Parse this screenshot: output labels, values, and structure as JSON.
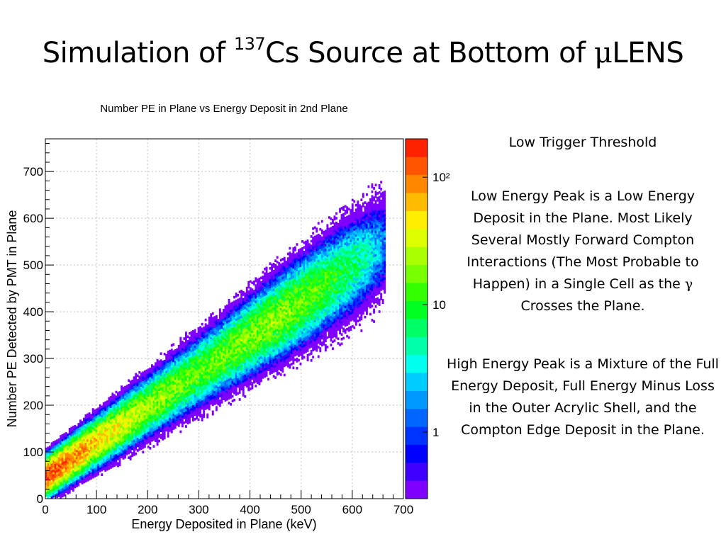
{
  "slide": {
    "title_prefix": "Simulation of ",
    "title_isotope_mass": "137",
    "title_isotope_symbol": "Cs",
    "title_middle": " Source at Bottom of ",
    "title_mu": "μ",
    "title_suffix": "LENS"
  },
  "notes": {
    "trigger": "Low Trigger Threshold",
    "low_peak_text": "Low Energy Peak is a Low Energy Deposit in the Plane. Most Likely Several Mostly Forward Compton Interactions (The Most Probable to Happen) in a Single Cell as the",
    "gamma_symbol": "γ",
    "low_peak_end": "Crosses the Plane.",
    "high_peak_text": "High Energy Peak is a Mixture of the Full Energy Deposit, Full Energy Minus Loss in the Outer Acrylic Shell, and the Compton Edge Deposit in the Plane."
  },
  "chart_data": {
    "type": "heatmap",
    "title": "Number PE in Plane vs Energy Deposit in 2nd Plane",
    "xlabel": "Energy Deposited in Plane (keV)",
    "ylabel": "Number PE Detected by PMT in Plane",
    "xlim": [
      0,
      700
    ],
    "ylim": [
      0,
      770
    ],
    "xticks": [
      0,
      100,
      200,
      300,
      400,
      500,
      600,
      700
    ],
    "yticks": [
      0,
      100,
      200,
      300,
      400,
      500,
      600,
      700
    ],
    "grid": true,
    "z_scale": "log",
    "colorbar_labels": [
      "1",
      "10",
      "10²"
    ],
    "colorbar_label_values": [
      1,
      10,
      100
    ],
    "colorbar_max": 200,
    "band": {
      "slope_pe_per_kev": 0.75,
      "intercept_pe": 45,
      "max_energy_kev": 665
    },
    "density_profile": [
      {
        "energy": 10,
        "counts": 150
      },
      {
        "energy": 50,
        "counts": 110
      },
      {
        "energy": 100,
        "counts": 70
      },
      {
        "energy": 200,
        "counts": 35
      },
      {
        "energy": 300,
        "counts": 25
      },
      {
        "energy": 400,
        "counts": 30
      },
      {
        "energy": 470,
        "counts": 32
      },
      {
        "energy": 550,
        "counts": 20
      },
      {
        "energy": 620,
        "counts": 10
      },
      {
        "energy": 660,
        "counts": 4
      }
    ],
    "colors": {
      "palette": [
        "#7f00ff",
        "#3f00ff",
        "#0000ff",
        "#0033ff",
        "#0066ff",
        "#0099ff",
        "#00ccff",
        "#00ffee",
        "#00ffaa",
        "#00ff66",
        "#00ff22",
        "#33ff00",
        "#77ff00",
        "#aaff00",
        "#ddff00",
        "#ffee00",
        "#ffbb00",
        "#ff8800",
        "#ff5500",
        "#ff2200"
      ],
      "frame": "#000000",
      "grid": "#c0c0c0"
    }
  }
}
